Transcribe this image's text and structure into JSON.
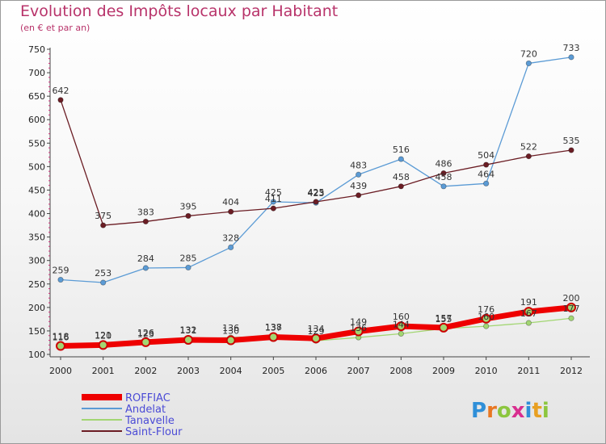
{
  "chart_data": {
    "type": "line",
    "title": "Evolution des Impôts locaux par Habitant",
    "subtitle": "(en € et par an)",
    "xlabel": "",
    "ylabel": "",
    "ylim": [
      100,
      750
    ],
    "yticks": [
      100,
      150,
      200,
      250,
      300,
      350,
      400,
      450,
      500,
      550,
      600,
      650,
      700,
      750
    ],
    "x": [
      "2000",
      "2001",
      "2002",
      "2003",
      "2004",
      "2005",
      "2006",
      "2007",
      "2008",
      "2009",
      "2010",
      "2011",
      "2012"
    ],
    "grid": false,
    "legend_position": "bottom-left",
    "series": [
      {
        "name": "ROFFIAC",
        "color": "#ee0000",
        "values": [
          118,
          120,
          126,
          131,
          130,
          137,
          134,
          149,
          160,
          157,
          176,
          191,
          200
        ]
      },
      {
        "name": "Andelat",
        "color": "#5b9bd5",
        "values": [
          259,
          253,
          284,
          285,
          328,
          425,
          423,
          483,
          516,
          458,
          464,
          720,
          733
        ]
      },
      {
        "name": "Tanavelle",
        "color": "#a2d672",
        "values": [
          116,
          121,
          123,
          132,
          136,
          138,
          129,
          136,
          144,
          155,
          160,
          167,
          177
        ]
      },
      {
        "name": "Saint-Flour",
        "color": "#6b1d24",
        "values": [
          642,
          375,
          383,
          395,
          404,
          411,
          425,
          439,
          458,
          486,
          504,
          522,
          535
        ]
      }
    ]
  },
  "logo": {
    "letters": [
      "P",
      "r",
      "o",
      "x",
      "i",
      "t",
      "i"
    ],
    "colors": [
      "#2f8fd8",
      "#e87722",
      "#8cc63f",
      "#d82f8f",
      "#2f8fd8",
      "#e8a022",
      "#8cc63f"
    ]
  }
}
